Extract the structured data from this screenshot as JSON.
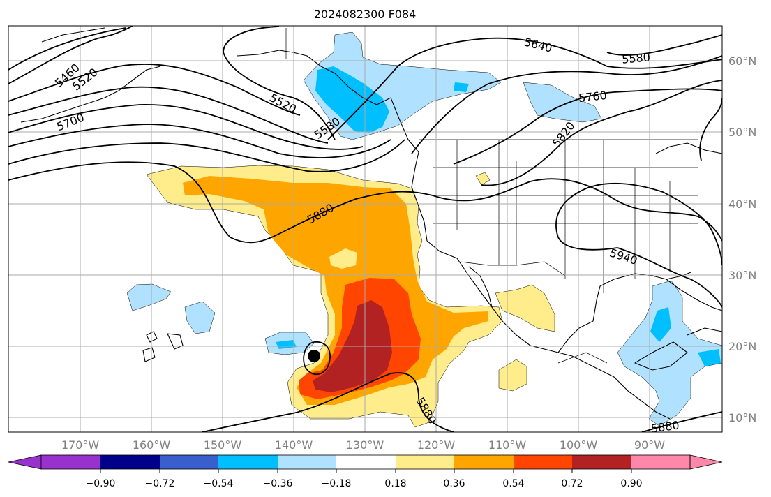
{
  "title": "2024082300 F084",
  "lat_labels": [
    "60°N",
    "50°N",
    "40°N",
    "30°N",
    "20°N",
    "10°N"
  ],
  "lon_labels": [
    "170°W",
    "160°W",
    "150°W",
    "140°W",
    "130°W",
    "120°W",
    "110°W",
    "100°W",
    "90°W"
  ],
  "colorbar": {
    "ticks": [
      "−0.90",
      "−0.72",
      "−0.54",
      "−0.36",
      "−0.18",
      "0.18",
      "0.36",
      "0.54",
      "0.72",
      "0.90"
    ],
    "colors": [
      "#9932cc",
      "#00008b",
      "#3a5fcd",
      "#00bfff",
      "#b0e2ff",
      "#ffffff",
      "#ffec8b",
      "#ffa500",
      "#ff4500",
      "#b22222",
      "#ff88aa"
    ]
  },
  "contour_labels": [
    "5460",
    "5520",
    "5700",
    "5520",
    "5580",
    "5640",
    "5580",
    "5760",
    "5820",
    "5880",
    "5940",
    "5880",
    "5880"
  ],
  "fill_colors": {
    "light_blue": "#b0e2ff",
    "blue": "#00bfff",
    "yellow": "#ffec8b",
    "orange": "#ffa500",
    "red_orange": "#ff4500",
    "dark_red": "#b22222"
  }
}
